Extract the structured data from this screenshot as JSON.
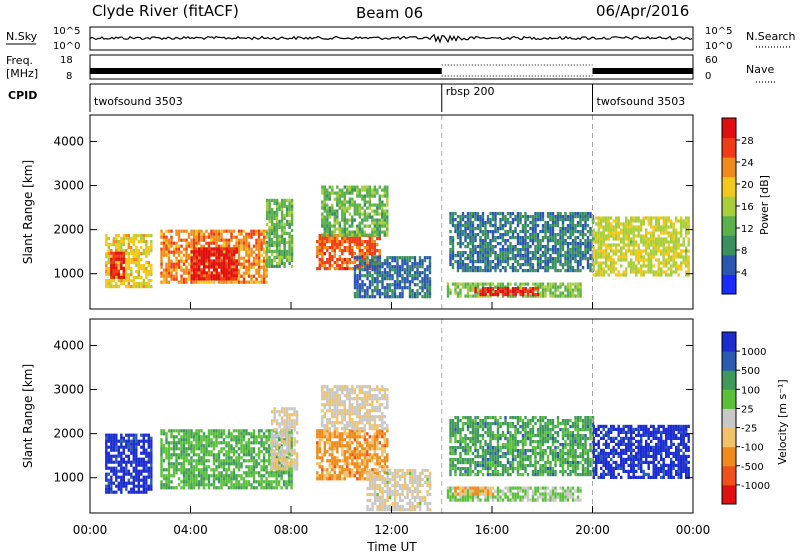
{
  "header": {
    "station": "Clyde River (fitACF)",
    "beam": "Beam 06",
    "date": "06/Apr/2016"
  },
  "aux_panels": {
    "nsky_label": "N.Sky",
    "nsky_ticks": [
      "10^5",
      "10^0"
    ],
    "nsearch_label": "N.Search",
    "nsearch_ticks": [
      "10^5",
      "10^0"
    ],
    "freq_label_1": "Freq.",
    "freq_label_2": "[MHz]",
    "freq_ticks": [
      "18",
      "8"
    ],
    "nave_label": "Nave",
    "nave_ticks": [
      "60",
      "0"
    ],
    "cpid_label": "CPID",
    "cpid_modes": [
      {
        "name": "twofsound 3503",
        "start": 0.0,
        "end": 14.0
      },
      {
        "name": "rbsp 200",
        "start": 14.0,
        "end": 20.0
      },
      {
        "name": "twofsound 3503",
        "start": 20.0,
        "end": 24.0
      }
    ]
  },
  "colors": {
    "power_scale": [
      "#1a2bff",
      "#2a58b0",
      "#3a8f5f",
      "#5ab04a",
      "#a8cf3a",
      "#f2c81a",
      "#f08a1a",
      "#f03c14",
      "#e01010"
    ],
    "velocity_scale": [
      "#e01010",
      "#f0501a",
      "#f08a1a",
      "#f2c26a",
      "#c8c8c8",
      "#5ac03a",
      "#3f9a5a",
      "#2a5bb0",
      "#1a2bd0"
    ]
  },
  "chart_data": [
    {
      "type": "heatmap",
      "panel": "power",
      "title": "",
      "xlabel": "Time UT",
      "ylabel": "Slant Range [km]",
      "xlim": [
        0,
        24
      ],
      "ylim": [
        200,
        4600
      ],
      "x_ticks": [
        "00:00",
        "04:00",
        "08:00",
        "12:00",
        "16:00",
        "20:00",
        "00:00"
      ],
      "y_ticks": [
        "1000",
        "2000",
        "3000",
        "4000"
      ],
      "colorbar": {
        "label": "Power [dB]",
        "ticks": [
          "28",
          "24",
          "20",
          "16",
          "12",
          "8",
          "4"
        ],
        "range": [
          0,
          30
        ]
      },
      "regions": [
        {
          "t": [
            0.6,
            2.4
          ],
          "r": [
            700,
            1900
          ],
          "value": 18
        },
        {
          "t": [
            0.8,
            1.3
          ],
          "r": [
            900,
            1500
          ],
          "value": 27
        },
        {
          "t": [
            2.8,
            7.0
          ],
          "r": [
            800,
            2000
          ],
          "value": 22
        },
        {
          "t": [
            4.0,
            5.8
          ],
          "r": [
            900,
            1600
          ],
          "value": 28
        },
        {
          "t": [
            7.0,
            8.0
          ],
          "r": [
            1200,
            2700
          ],
          "value": 12
        },
        {
          "t": [
            9.0,
            11.5
          ],
          "r": [
            1100,
            1900
          ],
          "value": 24
        },
        {
          "t": [
            9.2,
            11.8
          ],
          "r": [
            1900,
            3000
          ],
          "value": 12
        },
        {
          "t": [
            10.5,
            13.5
          ],
          "r": [
            500,
            1400
          ],
          "value": 6
        },
        {
          "t": [
            14.2,
            19.5
          ],
          "r": [
            500,
            800
          ],
          "value": 13
        },
        {
          "t": [
            15.3,
            17.8
          ],
          "r": [
            520,
            700
          ],
          "value": 27
        },
        {
          "t": [
            14.3,
            20.0
          ],
          "r": [
            1100,
            2400
          ],
          "value": 7
        },
        {
          "t": [
            20.0,
            23.8
          ],
          "r": [
            1000,
            2300
          ],
          "value": 16
        }
      ]
    },
    {
      "type": "heatmap",
      "panel": "velocity",
      "title": "",
      "xlabel": "Time UT",
      "ylabel": "Slant Range [km]",
      "xlim": [
        0,
        24
      ],
      "ylim": [
        200,
        4600
      ],
      "x_ticks": [
        "00:00",
        "04:00",
        "08:00",
        "12:00",
        "16:00",
        "20:00",
        "00:00"
      ],
      "y_ticks": [
        "1000",
        "2000",
        "3000",
        "4000"
      ],
      "colorbar": {
        "label": "Velocity [m s⁻¹]",
        "ticks": [
          "1000",
          "500",
          "100",
          "25",
          "-25",
          "-100",
          "-500",
          "-1000"
        ],
        "range": [
          -1000,
          1000
        ]
      },
      "regions": [
        {
          "t": [
            0.6,
            2.4
          ],
          "r": [
            700,
            2000
          ],
          "value": 900
        },
        {
          "t": [
            2.8,
            8.0
          ],
          "r": [
            800,
            2100
          ],
          "value": 300
        },
        {
          "t": [
            7.2,
            8.2
          ],
          "r": [
            1200,
            2600
          ],
          "value": -80
        },
        {
          "t": [
            9.0,
            11.8
          ],
          "r": [
            1000,
            2100
          ],
          "value": -400
        },
        {
          "t": [
            9.2,
            11.8
          ],
          "r": [
            2100,
            3100
          ],
          "value": -80
        },
        {
          "t": [
            11.0,
            13.5
          ],
          "r": [
            300,
            1200
          ],
          "value": -60
        },
        {
          "t": [
            14.2,
            19.5
          ],
          "r": [
            500,
            800
          ],
          "value": 150
        },
        {
          "t": [
            14.5,
            16.0
          ],
          "r": [
            600,
            800
          ],
          "value": -300
        },
        {
          "t": [
            14.3,
            20.0
          ],
          "r": [
            1100,
            2400
          ],
          "value": 400
        },
        {
          "t": [
            20.0,
            23.8
          ],
          "r": [
            1000,
            2200
          ],
          "value": 900
        }
      ]
    }
  ]
}
